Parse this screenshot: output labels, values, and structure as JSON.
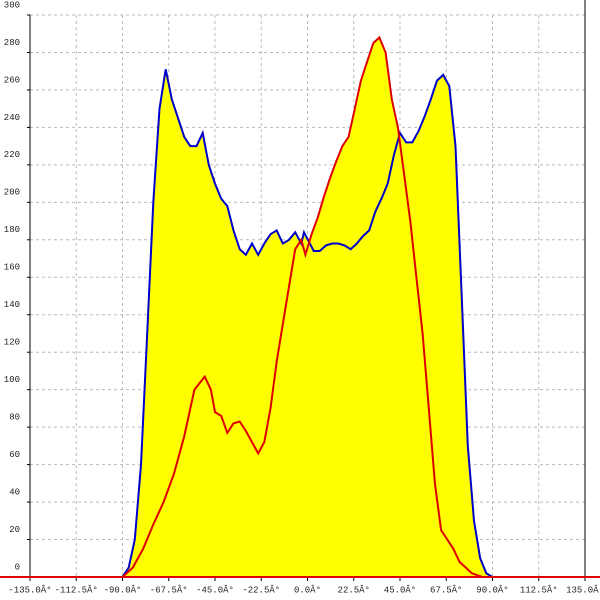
{
  "chart_data": {
    "type": "area",
    "fill": "#ffff00",
    "grid": true,
    "xlim": [
      -135,
      135
    ],
    "ylim": [
      0,
      300
    ],
    "xticks": [
      {
        "value": -135,
        "label": "-135.0Â°"
      },
      {
        "value": -112.5,
        "label": "-112.5Â°"
      },
      {
        "value": -90,
        "label": "-90.0Â°"
      },
      {
        "value": -67.5,
        "label": "-67.5Â°"
      },
      {
        "value": -45,
        "label": "-45.0Â°"
      },
      {
        "value": -22.5,
        "label": "-22.5Â°"
      },
      {
        "value": 0,
        "label": "0.0Â°"
      },
      {
        "value": 22.5,
        "label": "22.5Â°"
      },
      {
        "value": 45,
        "label": "45.0Â°"
      },
      {
        "value": 67.5,
        "label": "67.5Â°"
      },
      {
        "value": 90,
        "label": "90.0Â°"
      },
      {
        "value": 112.5,
        "label": "112.5Â°"
      },
      {
        "value": 135,
        "label": "135.0Â°"
      }
    ],
    "yticks": [
      0,
      20,
      40,
      60,
      80,
      100,
      120,
      140,
      160,
      180,
      200,
      220,
      240,
      260,
      280,
      300
    ],
    "series": [
      {
        "color": "#0000cc",
        "x": [
          -90,
          -87,
          -84,
          -81,
          -78,
          -75,
          -72,
          -69,
          -66,
          -63,
          -60,
          -57,
          -54,
          -51,
          -48,
          -45,
          -42,
          -39,
          -36,
          -33,
          -30,
          -27,
          -24,
          -21,
          -18,
          -15,
          -12,
          -9,
          -6,
          -3,
          -1.7,
          3,
          6,
          9,
          12,
          15,
          18,
          21,
          24,
          27,
          30,
          33,
          36,
          39,
          42,
          45,
          48,
          51,
          54,
          57,
          60,
          63,
          66,
          69,
          72,
          75,
          78,
          81,
          84,
          87,
          90
        ],
        "values": [
          0,
          5,
          20,
          60,
          130,
          200,
          250,
          271,
          255,
          245,
          235,
          230,
          230,
          237,
          220,
          210,
          202,
          198,
          185,
          175,
          172,
          178,
          172,
          178,
          183,
          185,
          178,
          180,
          184,
          178,
          184,
          174,
          174,
          177,
          178,
          178,
          177,
          175,
          178,
          182,
          185,
          195,
          202,
          210,
          225,
          237,
          232,
          232,
          238,
          246,
          255,
          265,
          268,
          262,
          230,
          150,
          70,
          30,
          10,
          2,
          0
        ]
      },
      {
        "color": "#dd0000",
        "x": [
          -90,
          -85,
          -80,
          -75,
          -70,
          -65,
          -60,
          -55,
          -50,
          -47,
          -45,
          -42,
          -39,
          -36,
          -33,
          -30,
          -27,
          -24,
          -21,
          -18,
          -15,
          -12,
          -9,
          -6,
          -3,
          -1,
          2,
          5,
          8,
          11,
          14,
          17,
          20,
          23,
          26,
          29,
          32,
          35,
          38,
          41,
          44,
          47,
          50,
          53,
          56,
          59,
          62,
          65,
          68,
          71,
          74,
          77,
          80,
          85,
          90
        ],
        "values": [
          0,
          5,
          15,
          28,
          40,
          55,
          75,
          100,
          107,
          100,
          88,
          86,
          77,
          82,
          83,
          78,
          72,
          66,
          72,
          90,
          115,
          135,
          155,
          175,
          180,
          172,
          183,
          192,
          203,
          213,
          222,
          230,
          235,
          250,
          265,
          275,
          285,
          288,
          280,
          255,
          240,
          215,
          190,
          160,
          130,
          90,
          50,
          25,
          20,
          15,
          8,
          5,
          2,
          0,
          0
        ]
      }
    ]
  }
}
